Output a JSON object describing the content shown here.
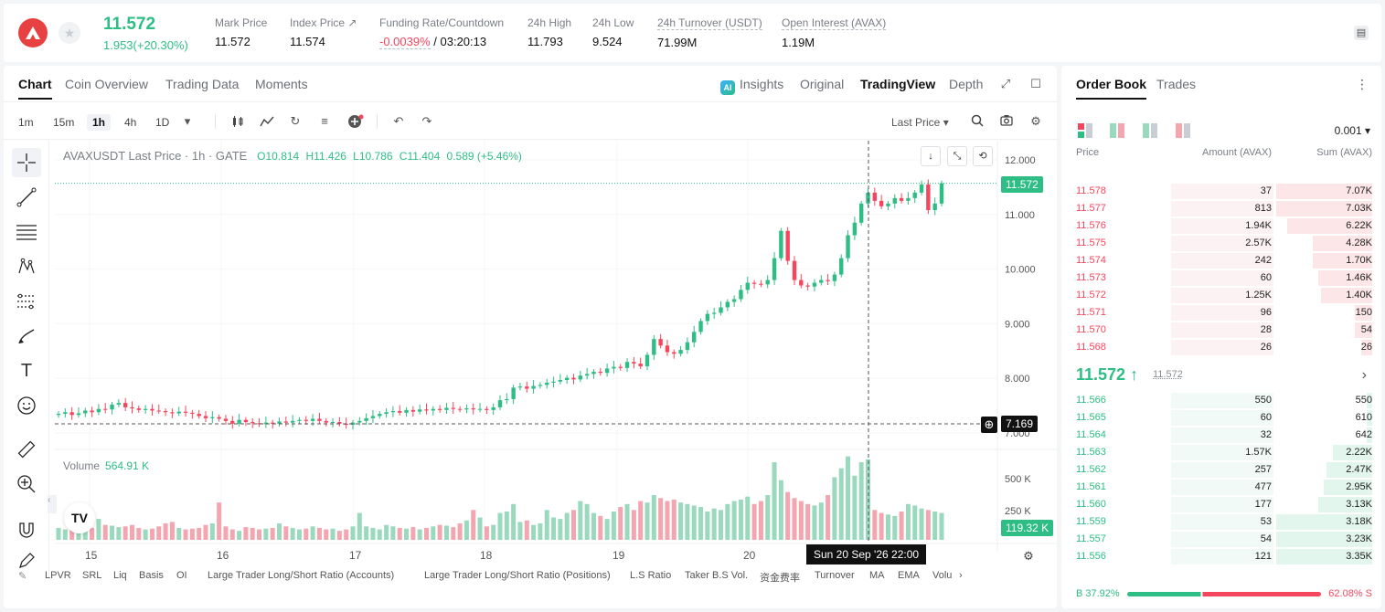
{
  "header": {
    "last_price": "11.572",
    "change": "1.953(+20.30%)",
    "stats": [
      {
        "label": "Mark Price",
        "value": "11.572"
      },
      {
        "label": "Index Price ↗",
        "value": "11.574"
      },
      {
        "label": "Funding Rate/Countdown",
        "value_rate": "-0.0039%",
        "value_cd": "/ 03:20:13"
      },
      {
        "label": "24h High",
        "value": "11.793"
      },
      {
        "label": "24h Low",
        "value": "9.524"
      },
      {
        "label": "24h Turnover (USDT)",
        "value": "71.99M"
      },
      {
        "label": "Open Interest (AVAX)",
        "value": "1.19M"
      }
    ]
  },
  "chart_tabs": [
    "Chart",
    "Coin Overview",
    "Trading Data",
    "Moments"
  ],
  "view_tabs": [
    "Insights",
    "Original",
    "TradingView",
    "Depth"
  ],
  "toolbar": {
    "timeframes": [
      "1m",
      "15m",
      "1h",
      "4h",
      "1D"
    ],
    "price_type": "Last Price ▾"
  },
  "legend": {
    "symbol": "AVAXUSDT Last Price · 1h · GATE",
    "o": "O10.814",
    "h": "H11.426",
    "l": "L10.786",
    "c": "C11.404",
    "chg": "0.589 (+5.46%)"
  },
  "volume_legend": {
    "label": "Volume",
    "value": "564.91 K"
  },
  "price_tags": {
    "last": "11.572",
    "cursor": "7.169",
    "volume": "119.32 K"
  },
  "crosshair_time": "Sun 20 Sep '26   22:00",
  "indicators": [
    "LPVR",
    "SRL",
    "Liq",
    "Basis",
    "OI",
    "Large Trader Long/Short Ratio (Accounts)",
    "Large Trader Long/Short Ratio (Positions)",
    "L.S Ratio",
    "Taker B.S Vol.",
    "资金费率",
    "Turnover",
    "MA",
    "EMA",
    "Volu"
  ],
  "chart_data": {
    "type": "candlestick",
    "title": "AVAXUSDT Last Price · 1h · GATE",
    "y_ticks": [
      "12.000",
      "11.000",
      "10.000",
      "9.000",
      "8.000",
      "7.000"
    ],
    "volume_ticks": [
      "500 K",
      "250 K"
    ],
    "x_ticks": [
      "15",
      "16",
      "17",
      "18",
      "19",
      "20"
    ],
    "ylim": [
      7.0,
      12.0
    ],
    "closes": [
      7.35,
      7.38,
      7.33,
      7.36,
      7.41,
      7.38,
      7.44,
      7.43,
      7.52,
      7.55,
      7.47,
      7.45,
      7.42,
      7.44,
      7.41,
      7.4,
      7.38,
      7.36,
      7.39,
      7.37,
      7.35,
      7.31,
      7.27,
      7.29,
      7.26,
      7.22,
      7.17,
      7.24,
      7.2,
      7.18,
      7.16,
      7.19,
      7.17,
      7.21,
      7.19,
      7.22,
      7.24,
      7.22,
      7.26,
      7.22,
      7.19,
      7.2,
      7.17,
      7.15,
      7.19,
      7.22,
      7.27,
      7.31,
      7.35,
      7.38,
      7.4,
      7.37,
      7.42,
      7.39,
      7.43,
      7.41,
      7.44,
      7.42,
      7.46,
      7.44,
      7.43,
      7.45,
      7.43,
      7.44,
      7.42,
      7.47,
      7.6,
      7.62,
      7.83,
      7.85,
      7.81,
      7.86,
      7.88,
      7.92,
      7.94,
      7.97,
      8.01,
      7.98,
      8.05,
      8.08,
      8.12,
      8.1,
      8.18,
      8.21,
      8.19,
      8.3,
      8.27,
      8.22,
      8.43,
      8.72,
      8.6,
      8.48,
      8.45,
      8.52,
      8.66,
      8.85,
      9.05,
      9.18,
      9.2,
      9.3,
      9.4,
      9.45,
      9.62,
      9.75,
      9.73,
      9.72,
      9.8,
      10.2,
      10.7,
      10.15,
      9.8,
      9.7,
      9.68,
      9.75,
      9.8,
      9.78,
      9.9,
      10.2,
      10.62,
      10.85,
      11.2,
      11.4,
      11.25,
      11.15,
      11.2,
      11.3,
      11.25,
      11.3,
      11.4,
      11.55,
      11.08,
      11.2,
      11.57
    ],
    "volumes": [
      80,
      70,
      180,
      120,
      90,
      80,
      140,
      100,
      95,
      85,
      90,
      100,
      80,
      70,
      75,
      90,
      110,
      120,
      80,
      70,
      75,
      80,
      100,
      110,
      250,
      90,
      70,
      60,
      85,
      80,
      70,
      75,
      80,
      110,
      90,
      80,
      70,
      75,
      90,
      80,
      70,
      75,
      60,
      70,
      90,
      180,
      90,
      80,
      70,
      100,
      90,
      80,
      75,
      85,
      70,
      80,
      90,
      100,
      95,
      85,
      110,
      130,
      200,
      150,
      90,
      100,
      180,
      190,
      240,
      120,
      130,
      100,
      110,
      200,
      150,
      140,
      180,
      200,
      260,
      240,
      180,
      160,
      140,
      190,
      220,
      240,
      200,
      260,
      250,
      300,
      280,
      260,
      270,
      250,
      240,
      230,
      220,
      190,
      210,
      200,
      240,
      260,
      270,
      290,
      240,
      260,
      300,
      520,
      400,
      320,
      280,
      260,
      240,
      230,
      250,
      300,
      420,
      480,
      560,
      430,
      520,
      540,
      200,
      180,
      170,
      160,
      190,
      240,
      230,
      210,
      200,
      190,
      180,
      180,
      170
    ]
  },
  "orderbook": {
    "tabs": [
      "Order Book",
      "Trades"
    ],
    "precision": "0.001 ▾",
    "columns": [
      "Price",
      "Amount (AVAX)",
      "Sum (AVAX)"
    ],
    "asks": [
      {
        "p": "11.578",
        "a": "37",
        "s": "7.07K",
        "w": 0.34
      },
      {
        "p": "11.577",
        "a": "813",
        "s": "7.03K",
        "w": 0.34
      },
      {
        "p": "11.576",
        "a": "1.94K",
        "s": "6.22K",
        "w": 0.3
      },
      {
        "p": "11.575",
        "a": "2.57K",
        "s": "4.28K",
        "w": 0.21
      },
      {
        "p": "11.574",
        "a": "242",
        "s": "1.70K",
        "w": 0.21
      },
      {
        "p": "11.573",
        "a": "60",
        "s": "1.46K",
        "w": 0.19
      },
      {
        "p": "11.572",
        "a": "1.25K",
        "s": "1.40K",
        "w": 0.18
      },
      {
        "p": "11.571",
        "a": "96",
        "s": "150",
        "w": 0.06
      },
      {
        "p": "11.570",
        "a": "28",
        "s": "54",
        "w": 0.06
      },
      {
        "p": "11.568",
        "a": "26",
        "s": "26",
        "w": 0.04
      }
    ],
    "mid": {
      "price": "11.572 ↑",
      "mark": "11.572"
    },
    "bids": [
      {
        "p": "11.566",
        "a": "550",
        "s": "550",
        "w": 0.02
      },
      {
        "p": "11.565",
        "a": "60",
        "s": "610",
        "w": 0.02
      },
      {
        "p": "11.564",
        "a": "32",
        "s": "642",
        "w": 0.02
      },
      {
        "p": "11.563",
        "a": "1.57K",
        "s": "2.22K",
        "w": 0.14
      },
      {
        "p": "11.562",
        "a": "257",
        "s": "2.47K",
        "w": 0.16
      },
      {
        "p": "11.561",
        "a": "477",
        "s": "2.95K",
        "w": 0.17
      },
      {
        "p": "11.560",
        "a": "177",
        "s": "3.13K",
        "w": 0.19
      },
      {
        "p": "11.559",
        "a": "53",
        "s": "3.18K",
        "w": 0.34
      },
      {
        "p": "11.557",
        "a": "54",
        "s": "3.23K",
        "w": 0.34
      },
      {
        "p": "11.556",
        "a": "121",
        "s": "3.35K",
        "w": 0.34
      }
    ],
    "ratio": {
      "buy": "B 37.92%",
      "sell": "62.08% S",
      "buy_frac": 0.3792
    }
  },
  "colors": {
    "up": "#2ebd85",
    "down": "#f6465d",
    "up_vol": "#9ad9bd",
    "down_vol": "#f3a5b0"
  }
}
